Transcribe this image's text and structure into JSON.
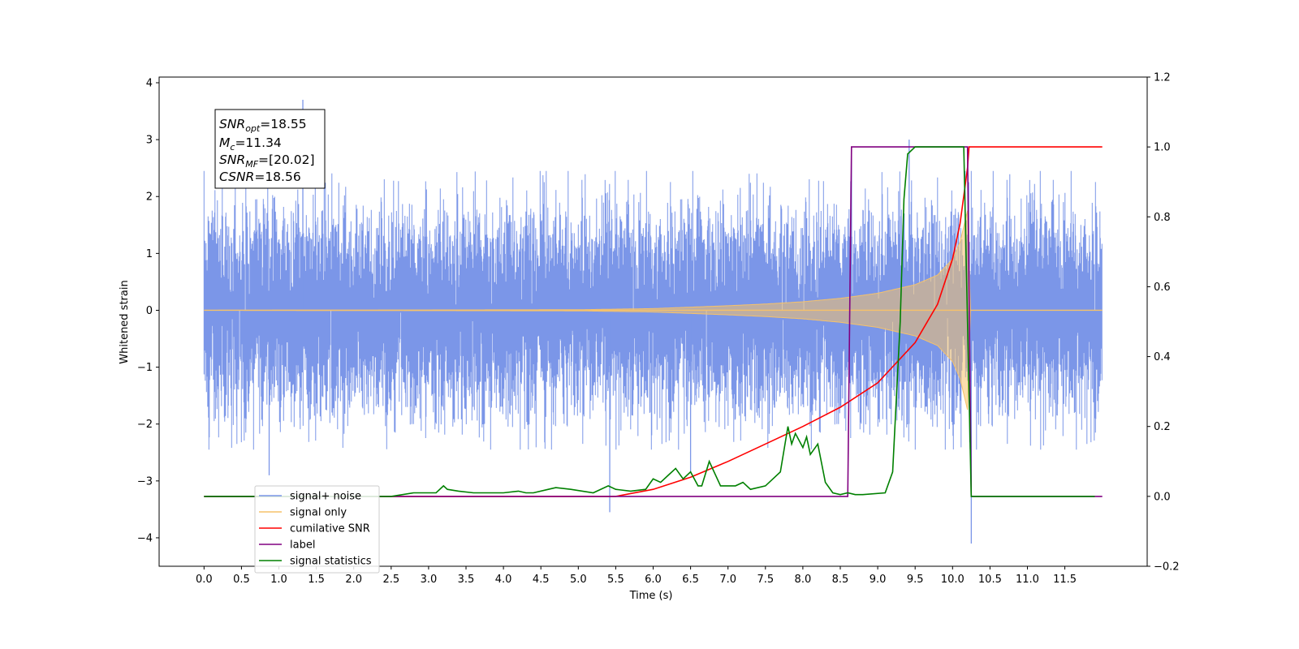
{
  "chart_data": {
    "type": "line",
    "xlabel": "Time (s)",
    "ylabel": "Whitened strain",
    "ylim": [
      -4.5,
      4.1
    ],
    "xlim": [
      -0.6,
      12.6
    ],
    "y2lim": [
      -0.2,
      1.2
    ],
    "x_tick_labels": [
      "0.0",
      "0.5",
      "1.0",
      "1.5",
      "2.0",
      "2.5",
      "3.0",
      "3.5",
      "4.0",
      "4.5",
      "5.0",
      "5.5",
      "6.0",
      "6.5",
      "7.0",
      "7.5",
      "8.0",
      "8.5",
      "9.0",
      "9.5",
      "10.0",
      "10.5",
      "11.0",
      "11.5"
    ],
    "y_tick_labels": [
      "−4",
      "−3",
      "−2",
      "−1",
      "0",
      "1",
      "2",
      "3",
      "4"
    ],
    "y2_tick_labels": [
      "−0.2",
      "0.0",
      "0.2",
      "0.4",
      "0.6",
      "0.8",
      "1.0",
      "1.2"
    ],
    "legend_position": "lower-left",
    "grid": false,
    "annotation": {
      "lines": [
        {
          "sym": "SNR",
          "sub": "opt",
          "value": "=18.55"
        },
        {
          "sym": "M",
          "sub": "c",
          "value": "=11.34"
        },
        {
          "sym": "SNR",
          "sub": "MF",
          "value": "=[20.02]"
        },
        {
          "sym": "CSNR",
          "sub": "",
          "value": "=18.56"
        }
      ]
    },
    "series": [
      {
        "name": "signal+ noise",
        "color": "#7b96e8",
        "axis": "left",
        "kind": "noise",
        "x_range": [
          0.0,
          12.0
        ],
        "std": 0.9,
        "peaks": [
          [
            1.32,
            3.7
          ],
          [
            9.42,
            3.0
          ],
          [
            10.25,
            -4.1
          ],
          [
            5.42,
            -3.55
          ],
          [
            0.87,
            -2.9
          ],
          [
            8.65,
            2.85
          ],
          [
            6.5,
            -2.85
          ]
        ]
      },
      {
        "name": "signal only",
        "color": "#f6c26a",
        "axis": "left",
        "kind": "chirp",
        "envelope": {
          "x": [
            0.0,
            5.0,
            6.0,
            7.0,
            7.5,
            8.0,
            8.5,
            9.0,
            9.5,
            9.8,
            10.0,
            10.1,
            10.2,
            10.23,
            10.24,
            12.0
          ],
          "amp": [
            0.0,
            0.01,
            0.03,
            0.08,
            0.11,
            0.15,
            0.21,
            0.3,
            0.45,
            0.62,
            0.9,
            1.2,
            1.75,
            0.3,
            0.0,
            0.0
          ]
        }
      },
      {
        "name": "cumilative SNR",
        "color": "#ff0000",
        "axis": "right",
        "x": [
          0.0,
          5.5,
          6.0,
          6.5,
          7.0,
          7.5,
          8.0,
          8.5,
          9.0,
          9.5,
          9.8,
          10.0,
          10.1,
          10.2,
          10.22,
          12.0
        ],
        "y": [
          0.0,
          0.0,
          0.02,
          0.055,
          0.1,
          0.15,
          0.2,
          0.255,
          0.325,
          0.44,
          0.55,
          0.68,
          0.78,
          0.94,
          1.0,
          1.0
        ]
      },
      {
        "name": "label",
        "color": "#800080",
        "axis": "right",
        "x": [
          0.0,
          8.6,
          8.65,
          10.2,
          10.25,
          12.0
        ],
        "y": [
          0.0,
          0.0,
          1.0,
          1.0,
          0.0,
          0.0
        ]
      },
      {
        "name": "signal statistics",
        "color": "#008000",
        "axis": "right",
        "x": [
          0.0,
          2.5,
          2.8,
          3.1,
          3.2,
          3.25,
          3.4,
          3.6,
          3.8,
          4.0,
          4.2,
          4.3,
          4.4,
          4.6,
          4.7,
          4.9,
          5.2,
          5.4,
          5.5,
          5.7,
          5.9,
          6.0,
          6.1,
          6.2,
          6.3,
          6.4,
          6.5,
          6.6,
          6.65,
          6.75,
          6.9,
          7.1,
          7.2,
          7.3,
          7.5,
          7.6,
          7.7,
          7.8,
          7.85,
          7.9,
          8.0,
          8.05,
          8.1,
          8.2,
          8.3,
          8.4,
          8.5,
          8.6,
          8.7,
          8.8,
          9.1,
          9.2,
          9.3,
          9.35,
          9.4,
          9.5,
          9.6,
          10.15,
          10.2,
          10.25,
          10.3,
          11.9
        ],
        "y": [
          0.0,
          0.0,
          0.01,
          0.01,
          0.03,
          0.02,
          0.015,
          0.01,
          0.01,
          0.01,
          0.015,
          0.01,
          0.01,
          0.02,
          0.025,
          0.02,
          0.01,
          0.03,
          0.02,
          0.015,
          0.02,
          0.05,
          0.04,
          0.06,
          0.08,
          0.05,
          0.07,
          0.03,
          0.03,
          0.1,
          0.03,
          0.03,
          0.04,
          0.02,
          0.03,
          0.05,
          0.07,
          0.2,
          0.15,
          0.18,
          0.14,
          0.17,
          0.12,
          0.15,
          0.04,
          0.01,
          0.005,
          0.01,
          0.005,
          0.005,
          0.01,
          0.07,
          0.5,
          0.85,
          0.98,
          1.0,
          1.0,
          1.0,
          0.5,
          0.0,
          0.0,
          0.0
        ]
      }
    ]
  }
}
